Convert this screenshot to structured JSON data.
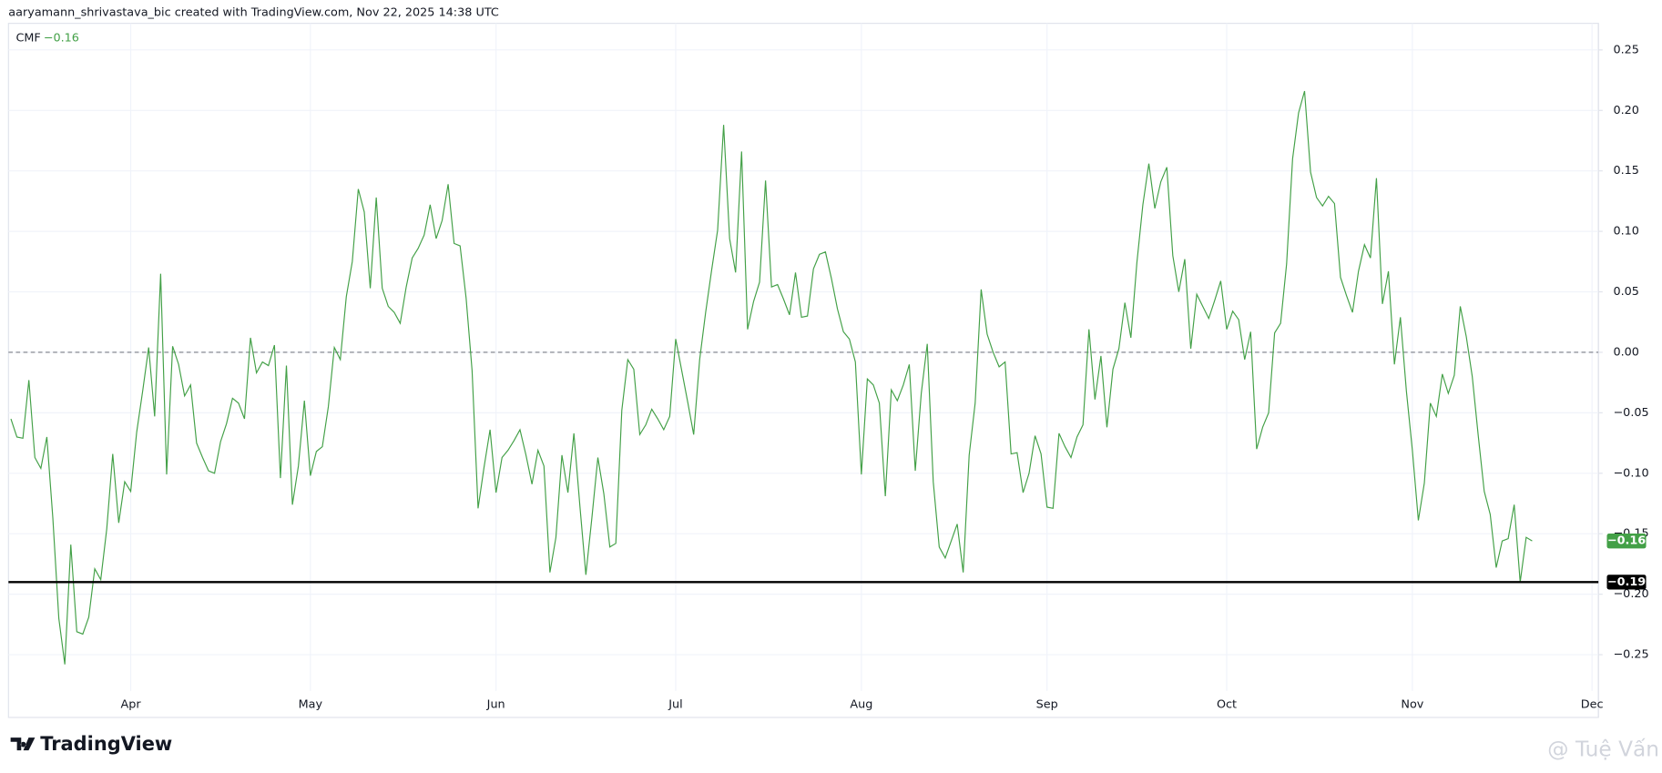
{
  "header": "aaryamann_shrivastava_bic created with TradingView.com, Nov 22, 2025 14:38 UTC",
  "brand": "TradingView",
  "watermark": "@ Tuệ Vấn",
  "chart_data": {
    "type": "line",
    "categories": [
      null,
      null,
      null,
      null,
      null,
      null,
      null,
      null,
      null,
      null,
      null,
      null,
      null,
      null,
      null,
      null,
      null,
      null,
      null,
      null,
      "Apr",
      null,
      null,
      null,
      null,
      null,
      null,
      null,
      null,
      null,
      null,
      null,
      null,
      null,
      null,
      null,
      null,
      null,
      null,
      null,
      null,
      null,
      null,
      null,
      null,
      null,
      null,
      null,
      null,
      null,
      "May",
      null,
      null,
      null,
      null,
      null,
      null,
      null,
      null,
      null,
      null,
      null,
      null,
      null,
      null,
      null,
      null,
      null,
      null,
      null,
      null,
      null,
      null,
      null,
      null,
      null,
      null,
      null,
      null,
      null,
      null,
      "Jun",
      null,
      null,
      null,
      null,
      null,
      null,
      null,
      null,
      null,
      null,
      null,
      null,
      null,
      null,
      null,
      null,
      null,
      null,
      null,
      null,
      null,
      null,
      null,
      null,
      null,
      null,
      null,
      null,
      null,
      "Jul",
      null,
      null,
      null,
      null,
      null,
      null,
      null,
      null,
      null,
      null,
      null,
      null,
      null,
      null,
      null,
      null,
      null,
      null,
      null,
      null,
      null,
      null,
      null,
      null,
      null,
      null,
      null,
      null,
      null,
      null,
      "Aug",
      null,
      null,
      null,
      null,
      null,
      null,
      null,
      null,
      null,
      null,
      null,
      null,
      null,
      null,
      null,
      null,
      null,
      null,
      null,
      null,
      null,
      null,
      null,
      null,
      null,
      null,
      null,
      null,
      null,
      null,
      "Sep",
      null,
      null,
      null,
      null,
      null,
      null,
      null,
      null,
      null,
      null,
      null,
      null,
      null,
      null,
      null,
      null,
      null,
      null,
      null,
      null,
      null,
      null,
      null,
      null,
      null,
      null,
      null,
      null,
      null,
      "Oct",
      null,
      null,
      null,
      null,
      null,
      null,
      null,
      null,
      null,
      null,
      null,
      null,
      null,
      null,
      null,
      null,
      null,
      null,
      null,
      null,
      null,
      null,
      null,
      null,
      null,
      null,
      null,
      null,
      null,
      null,
      "Nov",
      null,
      null,
      null,
      null,
      null,
      null,
      null,
      null,
      null,
      null,
      null,
      null,
      null,
      null,
      null,
      null,
      null,
      null,
      null,
      null,
      null,
      null,
      null,
      null,
      null,
      null,
      null,
      null,
      null,
      "Dec"
    ],
    "series": [
      {
        "name": "CMF",
        "color": "#43a047",
        "last_value_label": "−0.16",
        "values": [
          -0.055,
          -0.07,
          -0.071,
          -0.023,
          -0.087,
          -0.096,
          -0.07,
          -0.137,
          -0.22,
          -0.258,
          -0.159,
          -0.231,
          -0.233,
          -0.219,
          -0.179,
          -0.188,
          -0.146,
          -0.084,
          -0.141,
          -0.107,
          -0.115,
          -0.066,
          -0.032,
          0.004,
          -0.053,
          0.065,
          -0.101,
          0.005,
          -0.01,
          -0.036,
          -0.027,
          -0.075,
          -0.087,
          -0.098,
          -0.1,
          -0.074,
          -0.059,
          -0.038,
          -0.042,
          -0.055,
          0.012,
          -0.017,
          -0.008,
          -0.011,
          0.006,
          -0.104,
          -0.011,
          -0.126,
          -0.094,
          -0.04,
          -0.102,
          -0.082,
          -0.078,
          -0.045,
          0.004,
          -0.006,
          0.046,
          0.075,
          0.135,
          0.116,
          0.053,
          0.128,
          0.053,
          0.038,
          0.033,
          0.024,
          0.054,
          0.078,
          0.086,
          0.097,
          0.122,
          0.094,
          0.109,
          0.139,
          0.09,
          0.088,
          0.045,
          -0.015,
          -0.129,
          -0.095,
          -0.064,
          -0.116,
          -0.087,
          -0.081,
          -0.073,
          -0.064,
          -0.085,
          -0.109,
          -0.081,
          -0.094,
          -0.182,
          -0.153,
          -0.085,
          -0.116,
          -0.067,
          -0.127,
          -0.184,
          -0.137,
          -0.087,
          -0.117,
          -0.161,
          -0.158,
          -0.048,
          -0.006,
          -0.014,
          -0.068,
          -0.06,
          -0.047,
          -0.055,
          -0.064,
          -0.053,
          0.011,
          -0.015,
          -0.041,
          -0.068,
          -0.006,
          0.033,
          0.068,
          0.101,
          0.188,
          0.094,
          0.066,
          0.166,
          0.019,
          0.042,
          0.058,
          0.142,
          0.054,
          0.056,
          0.044,
          0.031,
          0.066,
          0.029,
          0.03,
          0.069,
          0.081,
          0.083,
          0.061,
          0.036,
          0.017,
          0.011,
          -0.008,
          -0.101,
          -0.022,
          -0.027,
          -0.042,
          -0.119,
          -0.031,
          -0.04,
          -0.027,
          -0.01,
          -0.098,
          -0.034,
          0.007,
          -0.107,
          -0.161,
          -0.17,
          -0.156,
          -0.142,
          -0.182,
          -0.085,
          -0.042,
          0.052,
          0.015,
          0.0,
          -0.012,
          -0.008,
          -0.084,
          -0.083,
          -0.116,
          -0.1,
          -0.069,
          -0.084,
          -0.128,
          -0.129,
          -0.067,
          -0.078,
          -0.087,
          -0.07,
          -0.06,
          0.019,
          -0.039,
          -0.003,
          -0.062,
          -0.014,
          0.003,
          0.041,
          0.012,
          0.074,
          0.122,
          0.156,
          0.119,
          0.141,
          0.153,
          0.08,
          0.05,
          0.077,
          0.003,
          0.048,
          0.038,
          0.028,
          0.043,
          0.059,
          0.019,
          0.034,
          0.027,
          -0.006,
          0.017,
          -0.08,
          -0.062,
          -0.05,
          0.016,
          0.024,
          0.073,
          0.16,
          0.198,
          0.216,
          0.149,
          0.128,
          0.121,
          0.129,
          0.123,
          0.062,
          0.047,
          0.033,
          0.067,
          0.089,
          0.078,
          0.144,
          0.04,
          0.067,
          -0.01,
          0.029,
          -0.032,
          -0.081,
          -0.139,
          -0.108,
          -0.042,
          -0.053,
          -0.018,
          -0.034,
          -0.019,
          0.038,
          0.013,
          -0.02,
          -0.069,
          -0.115,
          -0.134,
          -0.178,
          -0.156,
          -0.154,
          -0.126,
          -0.19,
          -0.153,
          -0.156,
          null,
          null,
          null,
          null,
          null,
          null,
          null,
          null,
          null,
          null
        ]
      }
    ],
    "ylim": [
      -0.28,
      0.272
    ],
    "yticks": [
      {
        "value": -0.25,
        "label": "−0.25"
      },
      {
        "value": -0.2,
        "label": "−0.20"
      },
      {
        "value": -0.15,
        "label": "−0.15"
      },
      {
        "value": -0.1,
        "label": "−0.10"
      },
      {
        "value": -0.05,
        "label": "−0.05"
      },
      {
        "value": 0,
        "label": "0.00"
      },
      0.05,
      {
        "value": 0.1,
        "label": "0.10"
      },
      0.15,
      {
        "value": 0.2,
        "label": "0.20"
      },
      0.25
    ],
    "zero_line": {
      "value": 0,
      "color": "#787b86"
    },
    "hlines": [
      {
        "value": -0.19,
        "label": "−0.19",
        "color": "#000000"
      }
    ],
    "grid": true
  }
}
